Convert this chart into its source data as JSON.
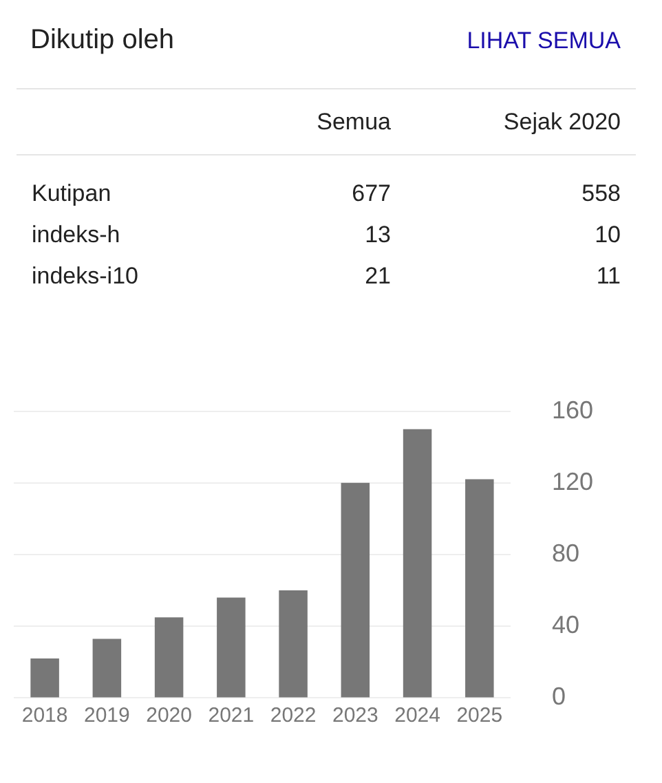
{
  "chart_data": [
    {
      "type": "other",
      "title": "Dikutip oleh",
      "annotations": [
        "LIHAT SEMUA"
      ],
      "categories": [
        "Kutipan",
        "indeks-h",
        "indeks-i10"
      ],
      "data_labels": true,
      "series": [
        {
          "name": "Semua",
          "values": [
            677,
            13,
            21
          ]
        },
        {
          "name": "Sejak 2020",
          "values": [
            558,
            10,
            11
          ]
        }
      ]
    },
    {
      "type": "bar",
      "categories": [
        "2018",
        "2019",
        "2020",
        "2021",
        "2022",
        "2023",
        "2024",
        "2025"
      ],
      "values": [
        22,
        33,
        45,
        56,
        60,
        120,
        150,
        122
      ],
      "color": "#777777",
      "ylim": [
        0,
        160
      ],
      "yticks": [
        0,
        40,
        80,
        120,
        160
      ],
      "grid": "y",
      "legend": false
    }
  ]
}
